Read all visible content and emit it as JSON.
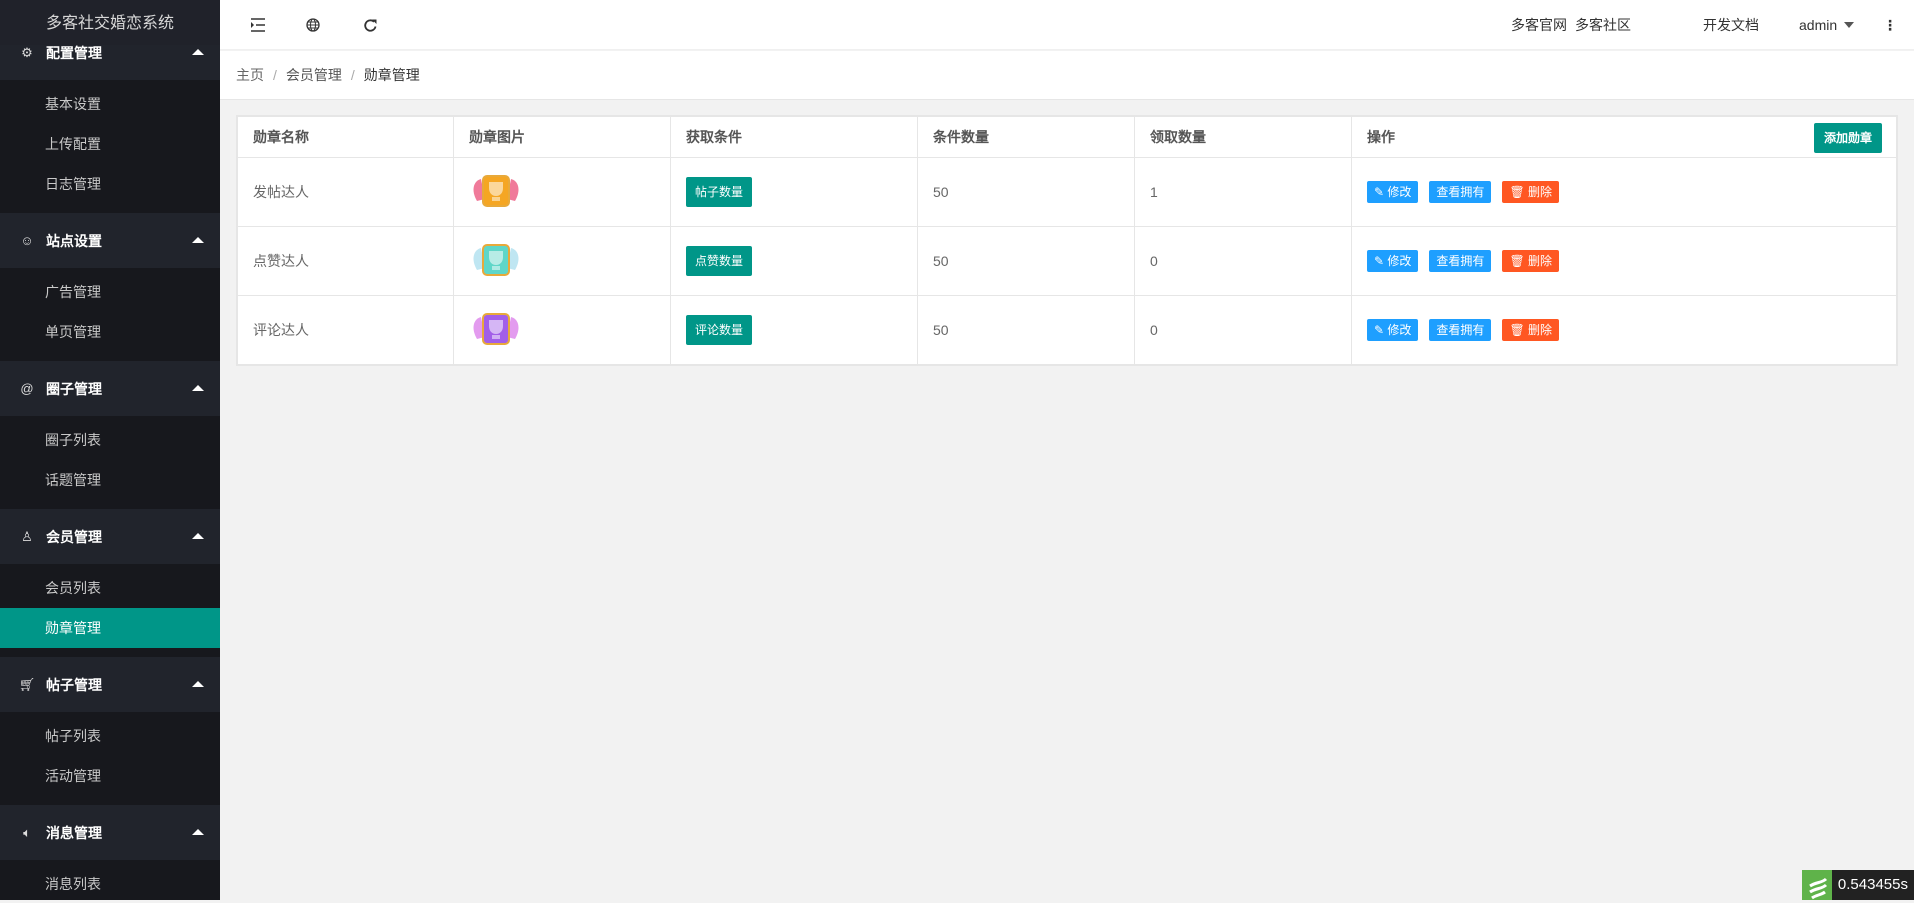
{
  "app_title": "多客社交婚恋系统",
  "sidebar": {
    "groups": [
      {
        "label": "配置管理",
        "icon": "gear-icon",
        "items": [
          "基本设置",
          "上传配置",
          "日志管理"
        ]
      },
      {
        "label": "站点设置",
        "icon": "smile-icon",
        "items": [
          "广告管理",
          "单页管理"
        ]
      },
      {
        "label": "圈子管理",
        "icon": "at-icon",
        "items": [
          "圈子列表",
          "话题管理"
        ]
      },
      {
        "label": "会员管理",
        "icon": "user-icon",
        "items": [
          "会员列表",
          "勋章管理"
        ]
      },
      {
        "label": "帖子管理",
        "icon": "cart-icon",
        "items": [
          "帖子列表",
          "活动管理"
        ]
      },
      {
        "label": "消息管理",
        "icon": "speaker-icon",
        "items": [
          "消息列表"
        ]
      }
    ],
    "active": "勋章管理"
  },
  "topbar": {
    "icons": [
      "menu-fold-icon",
      "globe-icon",
      "refresh-icon"
    ],
    "links": [
      "多客官网",
      "多客社区",
      "开发文档"
    ],
    "user": "admin"
  },
  "breadcrumb": [
    "主页",
    "会员管理",
    "勋章管理"
  ],
  "table": {
    "headers": [
      "勋章名称",
      "勋章图片",
      "获取条件",
      "条件数量",
      "领取数量",
      "操作"
    ],
    "add_label": "添加勋章",
    "actions": {
      "edit": "修改",
      "view": "查看拥有",
      "delete": "删除"
    },
    "rows": [
      {
        "name": "发帖达人",
        "badge_color": "#f5a623",
        "wing_color": "#f07a9a",
        "condition": "帖子数量",
        "count": "50",
        "claimed": "1"
      },
      {
        "name": "点赞达人",
        "badge_color": "#5fd6c8",
        "wing_color": "#bfe6f2",
        "condition": "点赞数量",
        "count": "50",
        "claimed": "0"
      },
      {
        "name": "评论达人",
        "badge_color": "#a25ee8",
        "wing_color": "#e39bef",
        "condition": "评论数量",
        "count": "50",
        "claimed": "0"
      }
    ]
  },
  "timer": "0.543455s",
  "colors": {
    "accent": "#009688",
    "blue": "#1e9fff",
    "danger": "#ff5722"
  }
}
